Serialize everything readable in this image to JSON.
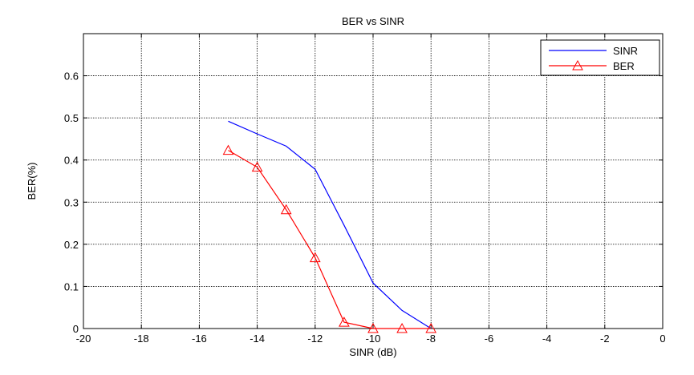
{
  "chart_data": {
    "type": "line",
    "title": "BER vs SINR",
    "xlabel": "SINR (dB)",
    "ylabel": "BER(%)",
    "xlim": [
      -20,
      0
    ],
    "ylim": [
      0,
      0.7
    ],
    "xticks": [
      -20,
      -18,
      -16,
      -14,
      -12,
      -10,
      -8,
      -6,
      -4,
      -2,
      0
    ],
    "yticks": [
      0,
      0.1,
      0.2,
      0.3,
      0.4,
      0.5,
      0.6
    ],
    "ytick_labels": [
      "0",
      "0.1",
      "0.2",
      "0.3",
      "0.4",
      "0.5",
      "0.6"
    ],
    "grid": true,
    "legend_position": "top-right",
    "series": [
      {
        "name": "SINR",
        "color": "#0000ff",
        "marker": "none",
        "x": [
          -15,
          -14,
          -13,
          -12,
          -11,
          -10,
          -9,
          -8
        ],
        "y": [
          0.492,
          0.462,
          0.433,
          0.378,
          0.245,
          0.108,
          0.043,
          0.0
        ]
      },
      {
        "name": "BER",
        "color": "#ff0000",
        "marker": "triangle",
        "x": [
          -15,
          -14,
          -13,
          -12,
          -11,
          -10,
          -9,
          -8
        ],
        "y": [
          0.423,
          0.383,
          0.282,
          0.168,
          0.015,
          0.0,
          0.0,
          0.0
        ]
      }
    ]
  }
}
